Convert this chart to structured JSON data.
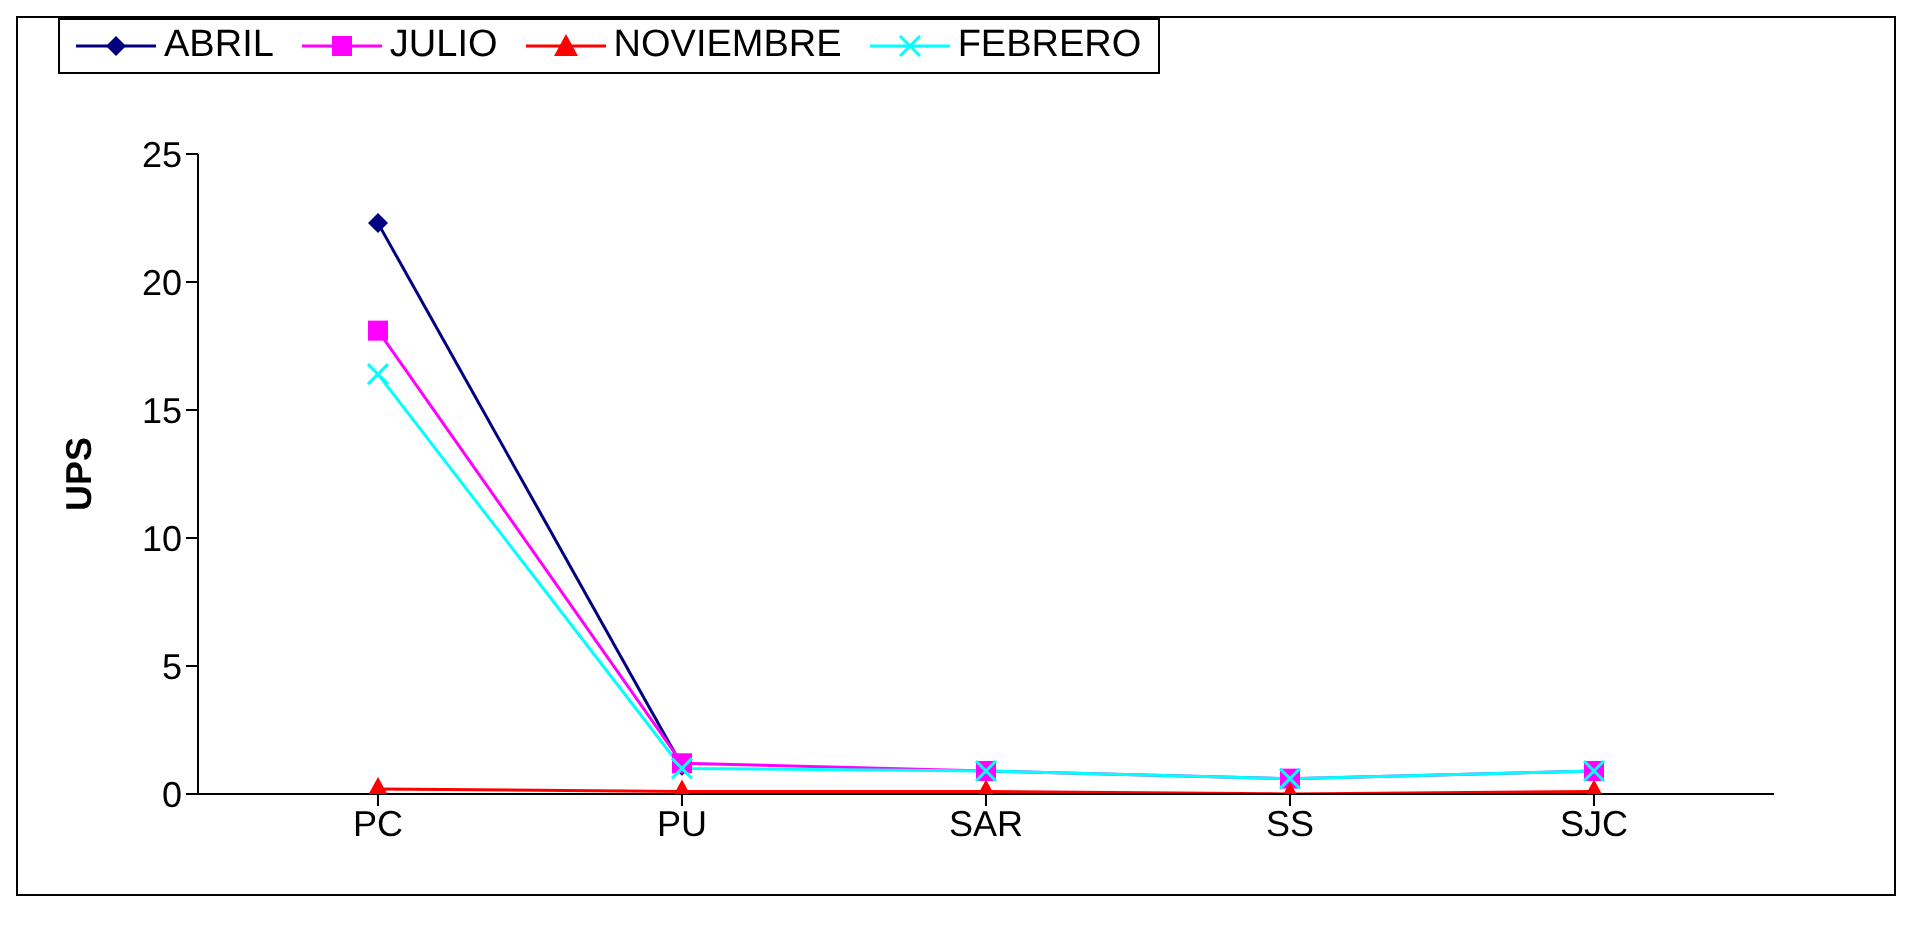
{
  "chart_data": {
    "type": "line",
    "ylabel": "UPS",
    "categories": [
      "PC",
      "PU",
      "SAR",
      "SS",
      "SJC"
    ],
    "series": [
      {
        "name": "ABRIL",
        "color": "#000080",
        "marker": "diamond",
        "values": [
          22.3,
          1.1,
          null,
          null,
          null
        ]
      },
      {
        "name": "JULIO",
        "color": "#ff00ff",
        "marker": "square",
        "values": [
          18.1,
          1.2,
          0.9,
          0.6,
          0.9
        ]
      },
      {
        "name": "NOVIEMBRE",
        "color": "#ff0000",
        "marker": "triangle",
        "values": [
          0.2,
          0.1,
          0.1,
          0,
          0.1
        ]
      },
      {
        "name": "FEBRERO",
        "color": "#00ffff",
        "marker": "cross",
        "values": [
          16.4,
          1.0,
          0.9,
          0.6,
          0.9
        ]
      }
    ],
    "ylim": [
      0,
      25
    ],
    "yticks": [
      0,
      5,
      10,
      15,
      20,
      25
    ],
    "grid": false,
    "legend": "top"
  }
}
